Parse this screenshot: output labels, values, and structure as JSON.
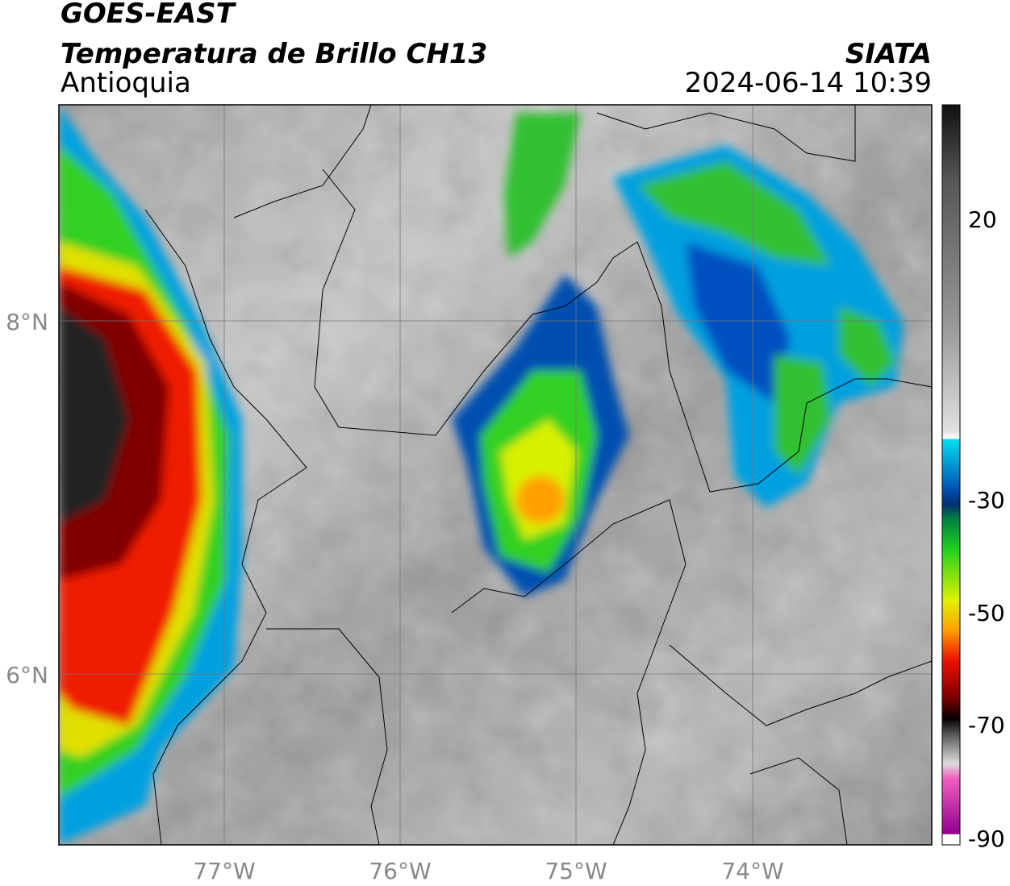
{
  "header": {
    "satellite": "GOES-EAST",
    "product": "Temperatura de Brillo CH13",
    "region": "Antioquia",
    "agency": "SIATA",
    "timestamp": "2024-06-14 10:39"
  },
  "map": {
    "lat_labels": [
      "8°N",
      "6°N"
    ],
    "lon_labels": [
      "77°W",
      "76°W",
      "75°W",
      "74°W"
    ]
  },
  "colorbar": {
    "ticks": [
      20,
      -30,
      -50,
      -70,
      -90
    ]
  }
}
